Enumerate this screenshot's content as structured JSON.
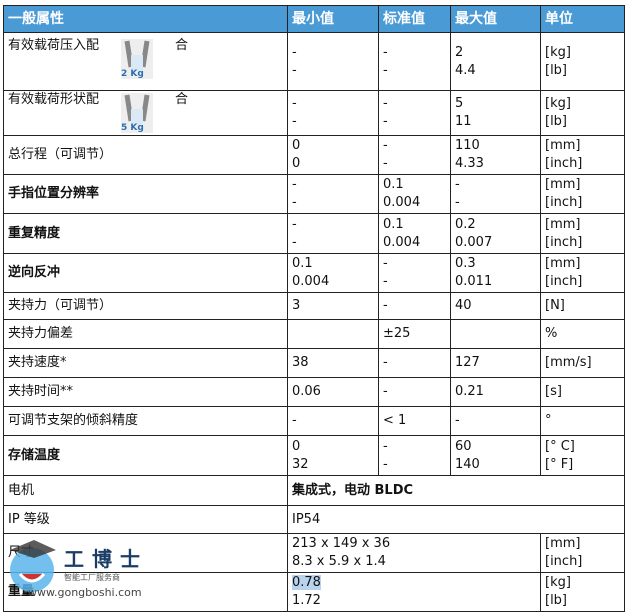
{
  "header": [
    "一般属性",
    "最小值",
    "标准值",
    "最大值",
    "单位"
  ],
  "rows": [
    {
      "label": "有效载荷压入配",
      "suffix": "合",
      "badge": "2 Kg",
      "min": [
        "-",
        "-"
      ],
      "std": [
        "-",
        "-"
      ],
      "max": [
        "2",
        "4.4"
      ],
      "unit": [
        "[kg]",
        "[lb]"
      ],
      "h": 58
    },
    {
      "label": "有效载荷形状配",
      "suffix": "合",
      "badge": "5 Kg",
      "min": [
        "-",
        "-"
      ],
      "std": [
        "-",
        "-"
      ],
      "max": [
        "5",
        "11"
      ],
      "unit": [
        "[kg]",
        "[lb]"
      ],
      "h": 42
    },
    {
      "label": "总行程（可调节）",
      "min": [
        "0",
        "0"
      ],
      "std": [
        "-",
        "-"
      ],
      "max": [
        "110",
        "4.33"
      ],
      "unit": [
        "[mm]",
        "[inch]"
      ],
      "h": 39
    },
    {
      "label": "手指位置分辨率",
      "min": [
        "-",
        "-"
      ],
      "std": [
        "0.1",
        "0.004"
      ],
      "max": [
        "-",
        "-"
      ],
      "unit": [
        "[mm]",
        "[inch]"
      ],
      "h": 39
    },
    {
      "label": "重复精度",
      "min": [
        "-",
        "-"
      ],
      "std": [
        "0.1",
        "0.004"
      ],
      "max": [
        "0.2",
        "0.007"
      ],
      "unit": [
        "[mm]",
        "[inch]"
      ],
      "h": 40
    },
    {
      "label": "逆向反冲",
      "min": [
        "0.1",
        "0.004"
      ],
      "std": [
        "-",
        "-"
      ],
      "max": [
        "0.3",
        "0.011"
      ],
      "unit": [
        "[mm]",
        "[inch]"
      ],
      "h": 39
    },
    {
      "label": "夹持力（可调节）",
      "min": [
        "3"
      ],
      "std": [
        "-"
      ],
      "max": [
        "40"
      ],
      "unit": [
        "[N]"
      ],
      "h": 27
    },
    {
      "label": "夹持力偏差",
      "min": [
        ""
      ],
      "std": [
        "±25"
      ],
      "max": [
        ""
      ],
      "unit": [
        "%"
      ],
      "h": 29
    },
    {
      "label": "夹持速度*",
      "min": [
        "38"
      ],
      "std": [
        "-"
      ],
      "max": [
        "127"
      ],
      "unit": [
        "[mm/s]"
      ],
      "h": 29
    },
    {
      "label": "夹持时间**",
      "min": [
        "0.06"
      ],
      "std": [
        "-"
      ],
      "max": [
        "0.21"
      ],
      "unit": [
        "[s]"
      ],
      "h": 29
    },
    {
      "label": "可调节支架的倾斜精度",
      "min": [
        "-"
      ],
      "std": [
        "< 1"
      ],
      "max": [
        "-"
      ],
      "unit": [
        "°"
      ],
      "h": 29
    },
    {
      "label": "存储温度",
      "min": [
        "0",
        "32"
      ],
      "std": [
        "-",
        "-"
      ],
      "max": [
        "60",
        "140"
      ],
      "unit": [
        "[°  C]",
        "[°  F]"
      ],
      "h": 40
    }
  ],
  "merged": [
    {
      "label": "电机",
      "value": "集成式，电动 BLDC"
    },
    {
      "label": "IP 等级",
      "value": "IP54"
    }
  ],
  "dims": {
    "label": "尺寸",
    "lines": [
      "213 x 149 x 36",
      "8.3 x 5.9 x 1.4"
    ],
    "unit": [
      "[mm]",
      "[inch]"
    ]
  },
  "weight": {
    "label": "重量",
    "lines": [
      "0.78",
      "1.72"
    ],
    "unit": [
      "[kg]",
      "[lb]"
    ]
  },
  "watermark": {
    "name": "工博士",
    "tagline": "智能工厂服务商",
    "url": "www.gongboshi.com"
  }
}
